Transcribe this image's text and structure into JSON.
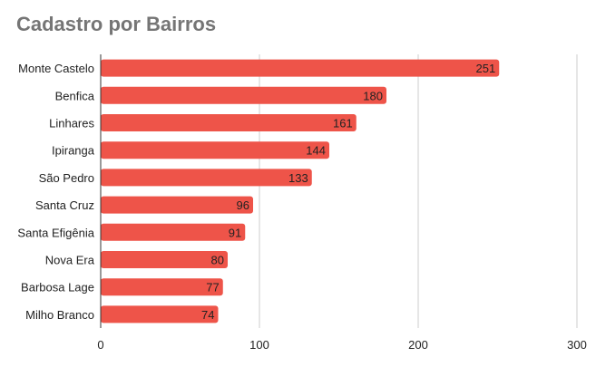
{
  "chart_data": {
    "type": "bar",
    "orientation": "horizontal",
    "title": "Cadastro por Bairros",
    "xlabel": "",
    "ylabel": "",
    "categories": [
      "Monte Castelo",
      "Benfica",
      "Linhares",
      "Ipiranga",
      "São Pedro",
      "Santa Cruz",
      "Santa Efigênia",
      "Nova Era",
      "Barbosa Lage",
      "Milho Branco"
    ],
    "values": [
      251,
      180,
      161,
      144,
      133,
      96,
      91,
      80,
      77,
      74
    ],
    "xlim": [
      0,
      300
    ],
    "ticks": [
      0,
      100,
      200,
      300
    ],
    "grid": true,
    "legend": "none",
    "bar_color": "#ee5449"
  }
}
